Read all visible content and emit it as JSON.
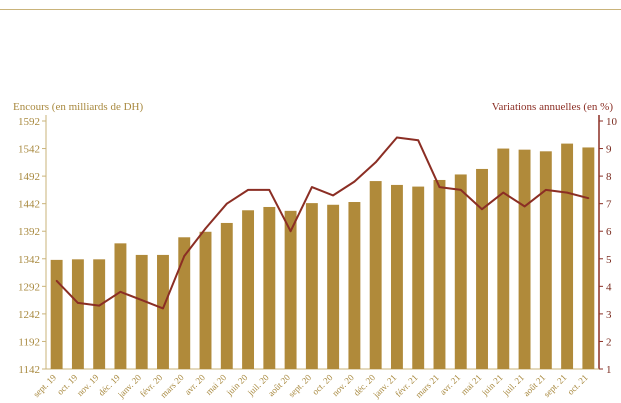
{
  "chart_data": {
    "type": "bar",
    "left_axis_title": "Encours (en milliards de DH)",
    "right_axis_title": "Variations annuelles (en %)",
    "categories": [
      "sept. 19",
      "oct. 19",
      "nov. 19",
      "déc. 19",
      "janv. 20",
      "févr. 20",
      "mars 20",
      "avr. 20",
      "mai 20",
      "juin 20",
      "juil. 20",
      "août 20",
      "sept. 20",
      "oct. 20",
      "nov. 20",
      "déc. 20",
      "janv. 21",
      "févr. 21",
      "mars 21",
      "avr. 21",
      "mai 21",
      "juin 21",
      "juil. 21",
      "août 21",
      "sept. 21",
      "oct. 21"
    ],
    "series": [
      {
        "type": "bar",
        "axis": "left",
        "color": "#b08a3a",
        "values": [
          1340,
          1341,
          1341,
          1370,
          1349,
          1349,
          1381,
          1391,
          1407,
          1430,
          1436,
          1429,
          1443,
          1440,
          1445,
          1483,
          1476,
          1473,
          1485,
          1495,
          1505,
          1542,
          1540,
          1537,
          1551,
          1544
        ]
      },
      {
        "type": "line",
        "axis": "right",
        "color": "#8b2e24",
        "values": [
          4.2,
          3.4,
          3.3,
          3.8,
          3.5,
          3.2,
          5.1,
          6.1,
          7.0,
          7.5,
          7.5,
          6.0,
          7.6,
          7.3,
          7.8,
          8.5,
          9.4,
          9.3,
          7.6,
          7.5,
          6.8,
          7.4,
          6.9,
          7.5,
          7.4,
          7.2
        ]
      }
    ],
    "left_axis": {
      "ylim": [
        1142,
        1592
      ],
      "ticks": [
        "1142",
        "1192",
        "1242",
        "1292",
        "1342",
        "1392",
        "1442",
        "1492",
        "1542",
        "1592"
      ]
    },
    "right_axis": {
      "ylim": [
        1,
        10
      ],
      "ticks": [
        "1",
        "2",
        "3",
        "4",
        "5",
        "6",
        "7",
        "8",
        "9",
        "10"
      ]
    },
    "grid": false
  }
}
